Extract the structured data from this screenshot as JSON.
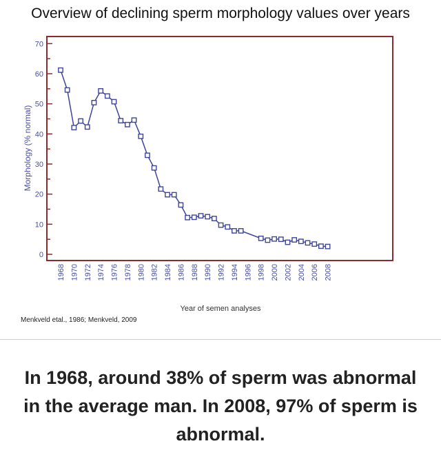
{
  "title": "Overview of declining sperm morphology values over years",
  "citation": "Menkveld etal., 1986; Menkveld, 2009",
  "caption": "In 1968, around 38% of sperm was abnormal in the average man. In 2008, 97% of sperm is abnormal.",
  "chart_data": {
    "type": "line",
    "title": "Overview of declining sperm morphology values over years",
    "xlabel": "Year of semen analyses",
    "ylabel": "Morphology (% normal)",
    "ylim": [
      0,
      70
    ],
    "yticks": [
      0,
      10,
      20,
      30,
      40,
      50,
      60,
      70
    ],
    "xlim": [
      1968,
      2008
    ],
    "xticks": [
      1968,
      1970,
      1972,
      1974,
      1976,
      1978,
      1980,
      1982,
      1984,
      1986,
      1988,
      1990,
      1992,
      1994,
      1996,
      1998,
      2000,
      2002,
      2004,
      2006,
      2008
    ],
    "grid": false,
    "marker": "square",
    "colors": {
      "series": "#3d4499",
      "frame": "#8b2b2b",
      "ticks": "#4a4fa0"
    },
    "x": [
      1968,
      1969,
      1970,
      1971,
      1972,
      1973,
      1974,
      1975,
      1976,
      1977,
      1978,
      1979,
      1980,
      1981,
      1982,
      1983,
      1984,
      1985,
      1986,
      1987,
      1988,
      1989,
      1990,
      1991,
      1992,
      1993,
      1994,
      1995,
      1998,
      1999,
      2000,
      2001,
      2002,
      2003,
      2004,
      2005,
      2006,
      2007,
      2008
    ],
    "y": [
      61.2,
      54.6,
      42.1,
      44.3,
      42.3,
      50.4,
      54.3,
      52.6,
      50.7,
      44.4,
      43.1,
      44.6,
      39.2,
      32.9,
      28.7,
      21.7,
      19.8,
      19.8,
      16.4,
      12.2,
      12.3,
      12.8,
      12.5,
      11.9,
      9.7,
      9.1,
      7.8,
      7.8,
      5.3,
      4.7,
      5.1,
      5.0,
      4.0,
      4.8,
      4.3,
      3.8,
      3.4,
      2.7,
      2.6
    ]
  }
}
